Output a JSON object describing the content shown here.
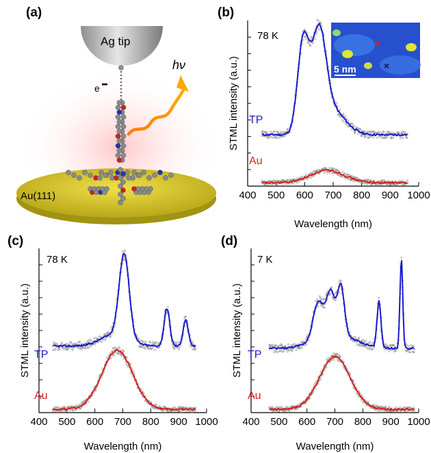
{
  "panels": {
    "a": {
      "label": "(a)",
      "tip_label": "Ag tip",
      "electron_label": "e",
      "photon_label": "hν",
      "substrate_label": "Au(111)"
    },
    "inset": {
      "scale_label": "5 nm"
    }
  },
  "colors": {
    "tp": "#1a1acc",
    "au": "#d42020",
    "raw": "#9a9a9a",
    "substrate": "#d6c72a",
    "tip": "#b8b8b8",
    "inset_bg": "#2a56d6"
  },
  "chart_data": [
    {
      "panel": "(b)",
      "type": "line",
      "temperature": "78 K",
      "xlabel": "Wavelength (nm)",
      "ylabel": "STML intensity (a.u.)",
      "xlim": [
        400,
        1000
      ],
      "xticks": [
        400,
        500,
        600,
        700,
        800,
        900,
        1000
      ],
      "x_range": [
        450,
        960
      ],
      "ylim": [
        0,
        10
      ],
      "series": [
        {
          "name": "TP",
          "offset": 3.1,
          "peaks": [
            [
              595,
              5.5,
              20
            ],
            [
              650,
              5.8,
              25
            ],
            [
              700,
              1.4,
              45
            ]
          ]
        },
        {
          "name": "Au",
          "offset": 0.2,
          "peaks": [
            [
              680,
              0.75,
              60
            ]
          ]
        }
      ]
    },
    {
      "panel": "(c)",
      "type": "line",
      "temperature": "78 K",
      "xlabel": "Wavelength (nm)",
      "ylabel": "STML intensity (a.u.)",
      "xlim": [
        400,
        1000
      ],
      "xticks": [
        400,
        500,
        600,
        700,
        800,
        900,
        1000
      ],
      "x_range": [
        450,
        960
      ],
      "ylim": [
        0,
        10
      ],
      "series": [
        {
          "name": "TP",
          "offset": 4.05,
          "peaks": [
            [
              705,
              5.1,
              18
            ],
            [
              858,
              2.3,
              10
            ],
            [
              925,
              1.6,
              9
            ],
            [
              670,
              0.7,
              50
            ]
          ]
        },
        {
          "name": "Au",
          "offset": 0.2,
          "peaks": [
            [
              680,
              3.6,
              55
            ]
          ]
        }
      ]
    },
    {
      "panel": "(d)",
      "type": "line",
      "temperature": "7 K",
      "xlabel": "Wavelength (nm)",
      "ylabel": "STML intensity (a.u.)",
      "xlim": [
        400,
        1000
      ],
      "xticks": [
        400,
        500,
        600,
        700,
        800,
        900,
        1000
      ],
      "x_range": [
        465,
        985
      ],
      "ylim": [
        0,
        10
      ],
      "series": [
        {
          "name": "TP",
          "offset": 3.9,
          "peaks": [
            [
              640,
              2.2,
              18
            ],
            [
              685,
              2.6,
              16
            ],
            [
              722,
              2.9,
              12
            ],
            [
              700,
              0.9,
              70
            ],
            [
              858,
              2.8,
              7
            ],
            [
              938,
              5.4,
              5
            ]
          ]
        },
        {
          "name": "Au",
          "offset": 0.2,
          "peaks": [
            [
              700,
              3.2,
              55
            ]
          ]
        }
      ]
    }
  ]
}
